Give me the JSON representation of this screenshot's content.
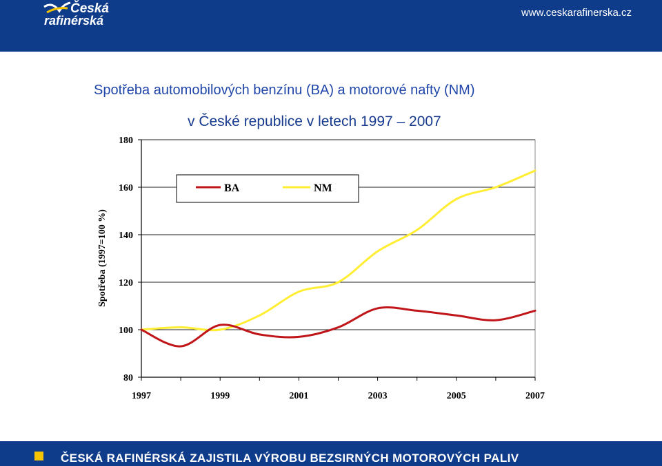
{
  "header": {
    "logo_line1": "Česká",
    "logo_line2": "rafinérská",
    "url": "www.ceskarafinerska.cz"
  },
  "title": {
    "line1": "Spotřeba automobilových benzínu (BA) a motorové nafty (NM)",
    "line2": "v České republice v letech 1997 – 2007"
  },
  "footer": {
    "text": "ČESKÁ RAFINÉRSKÁ ZAJISTILA VÝROBU BEZSIRNÝCH MOTOROVÝCH PALIV"
  },
  "colors": {
    "header_bg": "#0f3c8a",
    "ba": "#c0161a",
    "nm": "#ffee33",
    "footer_square": "#f5c400"
  },
  "chart_data": {
    "type": "line",
    "title": "",
    "xlabel": "",
    "ylabel": "Spotřeba (1997=100 %)",
    "xlim": [
      1997,
      2007
    ],
    "ylim": [
      80,
      180
    ],
    "x_ticks": [
      1997,
      1999,
      2001,
      2003,
      2005,
      2007
    ],
    "y_ticks": [
      80,
      100,
      120,
      140,
      160,
      180
    ],
    "grid": "horizontal",
    "legend_position": "top-left",
    "series": [
      {
        "name": "BA",
        "color": "#c0161a",
        "x": [
          1997,
          1998,
          1999,
          2000,
          2001,
          2002,
          2003,
          2004,
          2005,
          2006,
          2007
        ],
        "y": [
          100,
          93,
          102,
          98,
          97,
          101,
          109,
          108,
          106,
          104,
          108
        ]
      },
      {
        "name": "NM",
        "color": "#ffee33",
        "x": [
          1997,
          1998,
          1999,
          2000,
          2001,
          2002,
          2003,
          2004,
          2005,
          2006,
          2007
        ],
        "y": [
          100,
          101,
          100,
          106,
          116,
          120,
          133,
          142,
          155,
          160,
          167
        ]
      }
    ]
  }
}
